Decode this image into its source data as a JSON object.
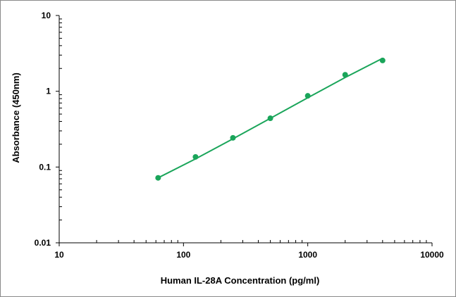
{
  "chart_data": {
    "type": "scatter",
    "xlabel": "Human IL-28A Concentration (pg/ml)",
    "ylabel": "Absorbance (450nm)",
    "xscale": "log",
    "yscale": "log",
    "xlim": [
      10,
      10000
    ],
    "ylim": [
      0.01,
      10
    ],
    "x_tick_labels": [
      "10",
      "100",
      "1000",
      "10000"
    ],
    "y_tick_labels": [
      "0.01",
      "0.1",
      "1",
      "10"
    ],
    "grid": false,
    "legend": "none",
    "series": [
      {
        "points": [
          {
            "x": 62.5,
            "y": 0.072
          },
          {
            "x": 125,
            "y": 0.136
          },
          {
            "x": 250,
            "y": 0.243
          },
          {
            "x": 500,
            "y": 0.44
          },
          {
            "x": 1000,
            "y": 0.87
          },
          {
            "x": 2000,
            "y": 1.65
          },
          {
            "x": 4000,
            "y": 2.55
          }
        ],
        "fit": [
          {
            "x": 62.5,
            "y": 0.072
          },
          {
            "x": 125,
            "y": 0.128
          },
          {
            "x": 250,
            "y": 0.236
          },
          {
            "x": 500,
            "y": 0.44
          },
          {
            "x": 1000,
            "y": 0.82
          },
          {
            "x": 2000,
            "y": 1.52
          },
          {
            "x": 4000,
            "y": 2.72
          }
        ],
        "color": "#1aa55a"
      }
    ]
  }
}
